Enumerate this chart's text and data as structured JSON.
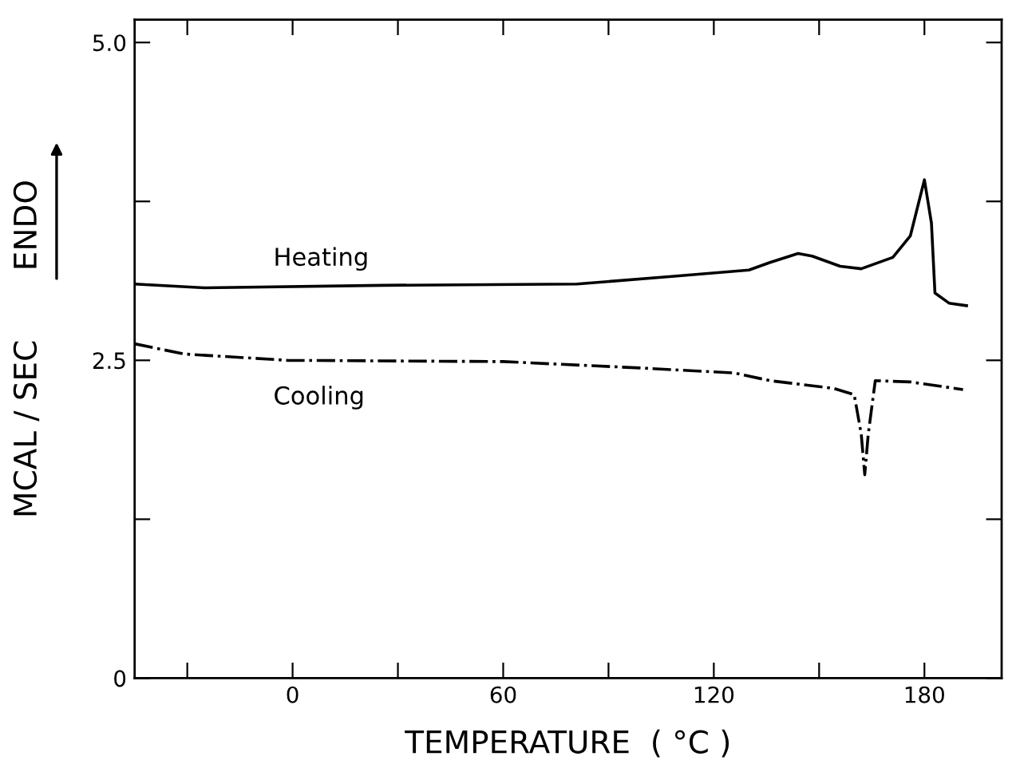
{
  "chart_data": {
    "type": "line",
    "xlabel": "TEMPERATURE  ( °C )",
    "ylabel": "MCAL / SEC       ENDO",
    "xlim": [
      -45,
      202
    ],
    "ylim": [
      0,
      5.18
    ],
    "xticks": [
      {
        "value": -30,
        "label": null
      },
      0,
      {
        "value": 30,
        "label": null
      },
      60,
      {
        "value": 90,
        "label": null
      },
      120,
      {
        "value": 150,
        "label": null
      },
      180
    ],
    "yticks": [
      0,
      {
        "value": 1.25,
        "label": null
      },
      2.5,
      {
        "value": 3.75,
        "label": null
      },
      {
        "value": 5.0,
        "label": "5.0"
      }
    ],
    "grid": false,
    "legend": false,
    "marker": "none",
    "series": [
      {
        "name": "Heating",
        "color": "#000000",
        "line_style": "solid",
        "x": [
          -45,
          -25,
          26,
          81,
          108,
          130,
          136,
          144,
          148,
          156,
          162,
          171,
          176,
          180,
          182,
          183,
          187,
          192
        ],
        "values": [
          3.1,
          3.07,
          3.09,
          3.1,
          3.16,
          3.21,
          3.27,
          3.34,
          3.32,
          3.24,
          3.22,
          3.31,
          3.48,
          3.92,
          3.58,
          3.03,
          2.95,
          2.93
        ]
      },
      {
        "name": "Cooling",
        "color": "#000000",
        "line_style": "dashdot",
        "x": [
          -45,
          -31,
          -1.5,
          60,
          99,
          126,
          136,
          154,
          160,
          162,
          163,
          164,
          166,
          176,
          191
        ],
        "values": [
          2.63,
          2.55,
          2.5,
          2.49,
          2.44,
          2.4,
          2.34,
          2.28,
          2.23,
          1.92,
          1.6,
          1.92,
          2.34,
          2.33,
          2.27
        ]
      }
    ]
  }
}
